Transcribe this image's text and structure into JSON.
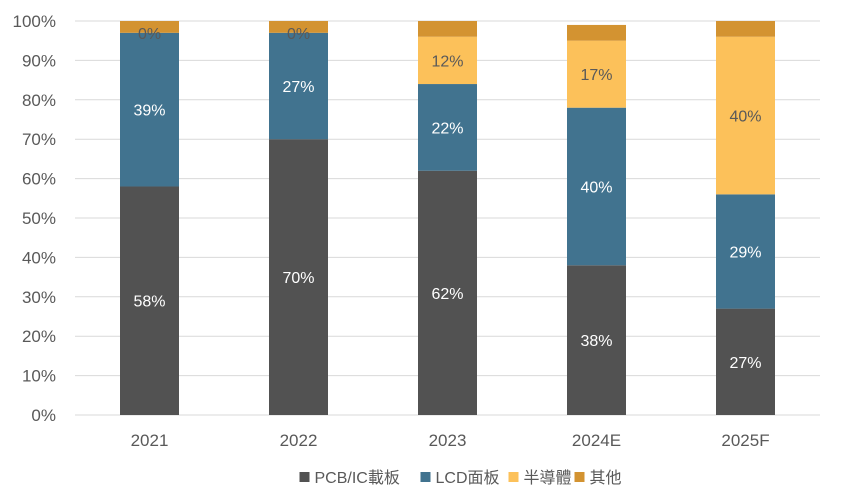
{
  "chart_data": {
    "type": "bar",
    "stacked": true,
    "categories": [
      "2021",
      "2022",
      "2023",
      "2024E",
      "2025F"
    ],
    "series": [
      {
        "name": "PCB/IC載板",
        "color": "#525252",
        "values": [
          58,
          70,
          62,
          38,
          27
        ],
        "labels": [
          "58%",
          "70%",
          "62%",
          "38%",
          "27%"
        ]
      },
      {
        "name": "LCD面板",
        "color": "#41738F",
        "values": [
          39,
          27,
          22,
          40,
          29
        ],
        "labels": [
          "39%",
          "27%",
          "22%",
          "40%",
          "29%"
        ]
      },
      {
        "name": "半導體",
        "color": "#FCC15A",
        "values": [
          0,
          0,
          12,
          17,
          40
        ],
        "labels": [
          "0%",
          "0%",
          "12%",
          "17%",
          "40%"
        ]
      },
      {
        "name": "其他",
        "color": "#D39331",
        "values": [
          3,
          3,
          4,
          4,
          4
        ],
        "labels": [
          "",
          "",
          "",
          "",
          ""
        ]
      }
    ],
    "ylim": [
      0,
      100
    ],
    "yticks": [
      "0%",
      "10%",
      "20%",
      "30%",
      "40%",
      "50%",
      "60%",
      "70%",
      "80%",
      "90%",
      "100%"
    ],
    "grid": true,
    "legend_position": "bottom",
    "label_colors": {
      "on_dark": "#ffffff",
      "on_light": "#595959"
    }
  }
}
